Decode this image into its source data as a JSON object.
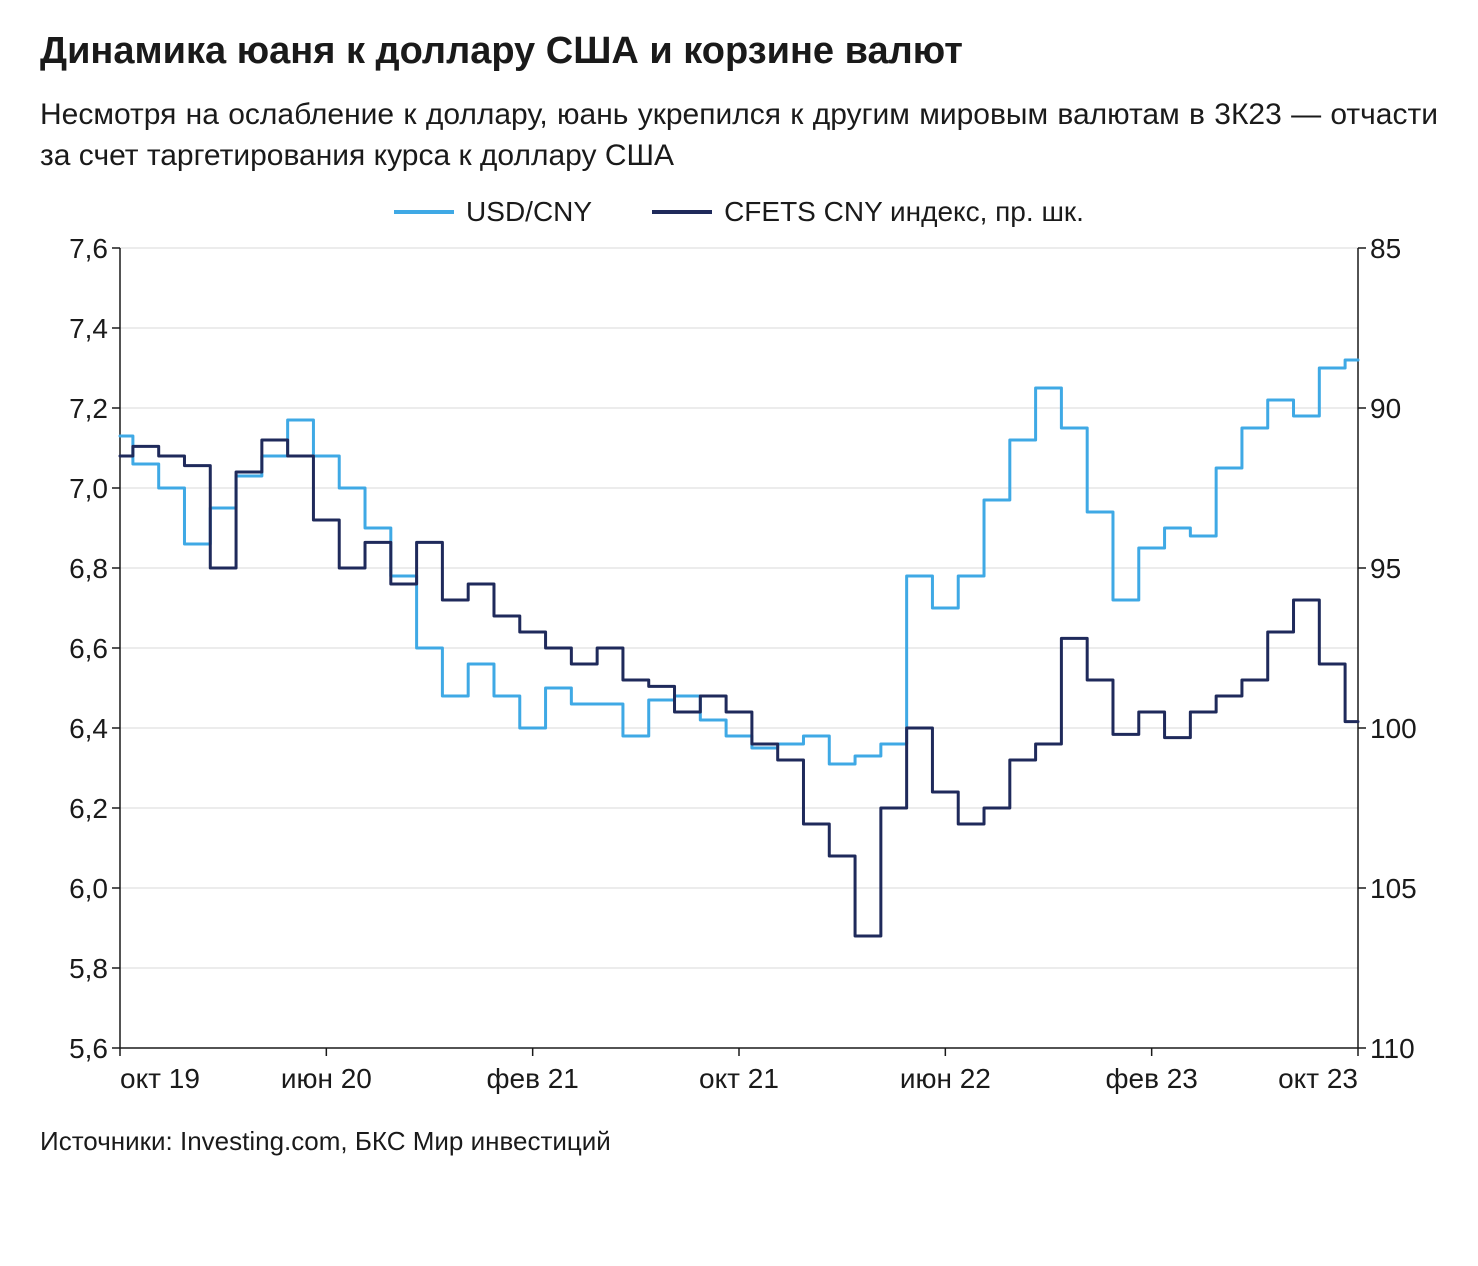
{
  "title": "Динамика юаня к доллару США и корзине валют",
  "subtitle": "Несмотря на ослабление к доллару, юань укрепился к другим мировым валютам в 3К23 — отчасти за счет таргетирования курса к доллару США",
  "source": "Источники: Investing.com, БКС Мир инвестиций",
  "chart": {
    "type": "line-dual-axis",
    "background_color": "#ffffff",
    "grid_color": "#d9d9d9",
    "axis_color": "#1a1a1a",
    "tick_fontsize": 28,
    "x": {
      "ticks": [
        "окт 19",
        "июн 20",
        "фев 21",
        "окт 21",
        "июн 22",
        "фев 23",
        "окт 23"
      ],
      "tick_positions": [
        0,
        8,
        16,
        24,
        32,
        40,
        48
      ]
    },
    "y_left": {
      "min": 5.6,
      "max": 7.6,
      "step": 0.2,
      "labels": [
        "7,6",
        "7,4",
        "7,2",
        "7,0",
        "6,8",
        "6,6",
        "6,4",
        "6,2",
        "6,0",
        "5,8",
        "5,6"
      ]
    },
    "y_right": {
      "min": 85,
      "max": 110,
      "step": 5,
      "inverted": true,
      "labels": [
        "85",
        "90",
        "95",
        "100",
        "105",
        "110"
      ]
    },
    "legend": [
      {
        "label": "USD/CNY",
        "color": "#3fa9e5"
      },
      {
        "label": "CFETS CNY индекс, пр. шк.",
        "color": "#1f2a5b"
      }
    ],
    "series": [
      {
        "name": "USD/CNY",
        "axis": "left",
        "color": "#3fa9e5",
        "line_width": 3,
        "data": [
          7.13,
          7.06,
          7.0,
          6.86,
          6.95,
          7.03,
          7.08,
          7.17,
          7.08,
          7.0,
          6.9,
          6.78,
          6.6,
          6.48,
          6.56,
          6.48,
          6.4,
          6.5,
          6.46,
          6.46,
          6.38,
          6.47,
          6.48,
          6.42,
          6.38,
          6.35,
          6.36,
          6.38,
          6.31,
          6.33,
          6.36,
          6.78,
          6.7,
          6.78,
          6.97,
          7.12,
          7.25,
          7.15,
          6.94,
          6.72,
          6.85,
          6.9,
          6.88,
          7.05,
          7.15,
          7.22,
          7.18,
          7.3,
          7.32
        ]
      },
      {
        "name": "CFETS CNY индекс",
        "axis": "right",
        "color": "#1f2a5b",
        "line_width": 3,
        "data": [
          91.5,
          91.2,
          91.5,
          91.8,
          95.0,
          92.0,
          91.0,
          91.5,
          93.5,
          95.0,
          94.2,
          95.5,
          94.2,
          96.0,
          95.5,
          96.5,
          97.0,
          97.5,
          98.0,
          97.5,
          98.5,
          98.7,
          99.5,
          99.0,
          99.5,
          100.5,
          101.0,
          103.0,
          104.0,
          106.5,
          102.5,
          100.0,
          102.0,
          103.0,
          102.5,
          101.0,
          100.5,
          97.2,
          98.5,
          100.2,
          99.5,
          100.3,
          99.5,
          99.0,
          98.5,
          97.0,
          96.0,
          98.0,
          99.8
        ]
      }
    ]
  }
}
